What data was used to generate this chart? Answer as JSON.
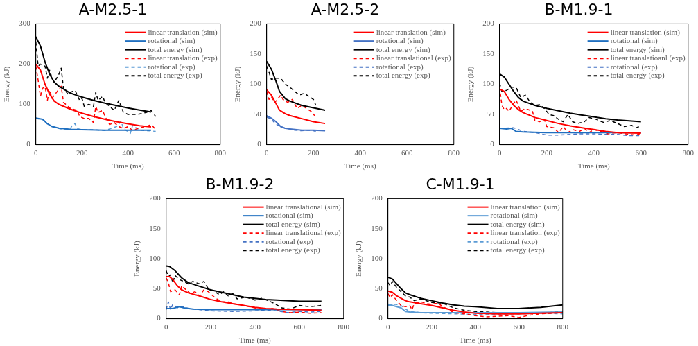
{
  "chart_data": [
    {
      "type": "line",
      "title": "A-M2.5-1",
      "xlabel": "Time (ms)",
      "ylabel": "Energy (kJ)",
      "xlim": [
        0,
        800
      ],
      "xticks": [
        0,
        200,
        400,
        600,
        800
      ],
      "ylim": [
        0,
        300
      ],
      "yticks": [
        0,
        100,
        200,
        300
      ],
      "grid": false,
      "legend": "top right",
      "marker": "none",
      "series": [
        {
          "name": "linear translation (sim)",
          "color": "#ff0000",
          "line_style": "solid",
          "x": [
            0,
            20,
            40,
            60,
            80,
            100,
            150,
            200,
            250,
            300,
            350,
            400,
            450,
            500
          ],
          "values": [
            200,
            185,
            150,
            125,
            108,
            100,
            88,
            78,
            70,
            63,
            57,
            52,
            47,
            44
          ]
        },
        {
          "name": "rotational (sim)",
          "color": "#1f6fc0",
          "line_style": "solid",
          "x": [
            0,
            30,
            50,
            70,
            100,
            150,
            200,
            300,
            400,
            500
          ],
          "values": [
            66,
            63,
            52,
            45,
            41,
            38,
            37,
            36,
            36,
            36
          ]
        },
        {
          "name": "total energy (sim)",
          "color": "#000000",
          "line_style": "solid",
          "x": [
            0,
            20,
            40,
            60,
            80,
            100,
            150,
            200,
            250,
            300,
            350,
            400,
            450,
            500
          ],
          "values": [
            268,
            245,
            205,
            175,
            155,
            145,
            128,
            118,
            110,
            103,
            97,
            91,
            86,
            81
          ]
        },
        {
          "name": "linear translation (exp)",
          "color": "#ff0000",
          "line_style": "dashed",
          "x": [
            0,
            10,
            20,
            30,
            40,
            50,
            60,
            70,
            90,
            110,
            120,
            150,
            180,
            190,
            210,
            230,
            250,
            260,
            270,
            290,
            300,
            320,
            340,
            360,
            380,
            400,
            420,
            450,
            480,
            500,
            520
          ],
          "values": [
            195,
            160,
            120,
            140,
            145,
            110,
            135,
            115,
            130,
            145,
            105,
            90,
            85,
            70,
            65,
            65,
            55,
            95,
            80,
            85,
            70,
            50,
            55,
            45,
            40,
            45,
            35,
            42,
            45,
            50,
            38
          ]
        },
        {
          "name": "rotational (exp)",
          "color": "#5b9bd5",
          "line_style": "dashed",
          "x": [
            0,
            30,
            60,
            100,
            120,
            150,
            160,
            170,
            180,
            200,
            250,
            300,
            350,
            370,
            380,
            410,
            420,
            450,
            500,
            520
          ],
          "values": [
            65,
            62,
            48,
            40,
            37,
            40,
            50,
            52,
            40,
            37,
            37,
            35,
            45,
            58,
            40,
            28,
            48,
            36,
            34,
            33
          ]
        },
        {
          "name": "total energy (exp)",
          "color": "#000000",
          "line_style": "dashed",
          "x": [
            0,
            10,
            20,
            40,
            50,
            60,
            70,
            80,
            100,
            110,
            120,
            140,
            150,
            170,
            190,
            200,
            210,
            230,
            250,
            260,
            270,
            290,
            300,
            320,
            340,
            360,
            380,
            400,
            440,
            480,
            500,
            520
          ],
          "values": [
            255,
            195,
            200,
            195,
            165,
            185,
            165,
            155,
            175,
            190,
            140,
            125,
            130,
            135,
            110,
            115,
            95,
            100,
            95,
            130,
            110,
            120,
            105,
            95,
            85,
            110,
            80,
            75,
            75,
            80,
            85,
            70
          ]
        }
      ]
    },
    {
      "type": "line",
      "title": "A-M2.5-2",
      "xlabel": "Time (ms)",
      "ylabel": "Energy (kJ)",
      "xlim": [
        0,
        800
      ],
      "xticks": [
        0,
        200,
        400,
        600,
        800
      ],
      "ylim": [
        0,
        200
      ],
      "yticks": [
        0,
        50,
        100,
        150,
        200
      ],
      "grid": false,
      "legend": "top right",
      "marker": "none",
      "series": [
        {
          "name": "linear translation (sim)",
          "color": "#ff0000",
          "line_style": "solid",
          "x": [
            0,
            20,
            40,
            55,
            80,
            100,
            150,
            200,
            250
          ],
          "values": [
            91,
            82,
            68,
            57,
            51,
            48,
            43,
            38,
            35
          ]
        },
        {
          "name": "rotational (sim)",
          "color": "#4472c4",
          "line_style": "solid",
          "x": [
            0,
            20,
            40,
            60,
            80,
            100,
            150,
            200,
            250
          ],
          "values": [
            48,
            44,
            38,
            30,
            27,
            26,
            24,
            24,
            23
          ]
        },
        {
          "name": "total energy (sim)",
          "color": "#000000",
          "line_style": "solid",
          "x": [
            0,
            20,
            40,
            55,
            80,
            100,
            150,
            200,
            250
          ],
          "values": [
            138,
            125,
            105,
            88,
            76,
            72,
            65,
            61,
            57
          ]
        },
        {
          "name": "linear translational (exp)",
          "color": "#ff0000",
          "line_style": "dashed",
          "x": [
            0,
            10,
            20,
            30,
            40,
            60,
            70,
            90,
            110,
            130,
            150,
            170,
            190,
            205
          ],
          "values": [
            88,
            75,
            80,
            70,
            72,
            82,
            75,
            70,
            75,
            60,
            65,
            60,
            55,
            48
          ]
        },
        {
          "name": "rotational (exp)",
          "color": "#4472c4",
          "line_style": "dashed",
          "x": [
            0,
            20,
            40,
            60,
            80,
            100,
            120,
            150,
            180,
            200,
            210
          ],
          "values": [
            46,
            42,
            34,
            30,
            27,
            26,
            24,
            23,
            24,
            23,
            22
          ]
        },
        {
          "name": "total energy (exp)",
          "color": "#000000",
          "line_style": "dashed",
          "x": [
            0,
            10,
            20,
            40,
            60,
            80,
            100,
            120,
            140,
            160,
            180,
            200,
            210
          ],
          "values": [
            130,
            120,
            108,
            110,
            110,
            100,
            95,
            88,
            82,
            85,
            80,
            75,
            65
          ]
        }
      ]
    },
    {
      "type": "line",
      "title": "B-M1.9-1",
      "xlabel": "Time (ms)",
      "ylabel": "Energy (kJ)",
      "xlim": [
        0,
        800
      ],
      "xticks": [
        0,
        200,
        400,
        600,
        800
      ],
      "ylim": [
        0,
        200
      ],
      "yticks": [
        0,
        50,
        100,
        150,
        200
      ],
      "grid": false,
      "legend": "top right",
      "marker": "none",
      "series": [
        {
          "name": "linear translation (sim)",
          "color": "#ff0000",
          "line_style": "solid",
          "x": [
            0,
            20,
            40,
            60,
            80,
            100,
            150,
            200,
            250,
            300,
            350,
            400,
            450,
            500,
            600
          ],
          "values": [
            92,
            88,
            75,
            65,
            58,
            53,
            45,
            40,
            35,
            31,
            28,
            25,
            22,
            20,
            19
          ]
        },
        {
          "name": "rotational (sim)",
          "color": "#1f6fc0",
          "line_style": "solid",
          "x": [
            0,
            30,
            50,
            70,
            100,
            200,
            300,
            400,
            500,
            600
          ],
          "values": [
            27,
            26,
            27,
            22,
            21,
            20,
            20,
            20,
            20,
            20
          ]
        },
        {
          "name": "total energy (sim)",
          "color": "#000000",
          "line_style": "solid",
          "x": [
            0,
            20,
            40,
            60,
            80,
            100,
            150,
            200,
            250,
            300,
            350,
            400,
            450,
            500,
            600
          ],
          "values": [
            117,
            112,
            100,
            88,
            78,
            72,
            65,
            60,
            56,
            52,
            49,
            46,
            43,
            41,
            38
          ]
        },
        {
          "name": "linear translatioanl (exp)",
          "color": "#ff0000",
          "line_style": "dashed",
          "x": [
            0,
            10,
            20,
            30,
            40,
            60,
            70,
            90,
            110,
            140,
            150,
            170,
            190,
            200,
            230,
            250,
            270,
            290,
            310,
            340,
            360,
            380,
            400,
            430,
            460,
            500,
            550,
            580,
            600
          ],
          "values": [
            95,
            65,
            58,
            60,
            55,
            68,
            74,
            55,
            60,
            55,
            40,
            38,
            42,
            30,
            28,
            20,
            30,
            20,
            25,
            22,
            27,
            20,
            25,
            22,
            18,
            20,
            17,
            16,
            19
          ]
        },
        {
          "name": "rotational (exp)",
          "color": "#4472c4",
          "line_style": "dashed",
          "x": [
            0,
            60,
            100,
            150,
            200,
            250,
            300,
            350,
            400,
            450,
            500,
            550,
            600
          ],
          "values": [
            27,
            28,
            22,
            20,
            16,
            16,
            17,
            18,
            18,
            17,
            17,
            15,
            15
          ]
        },
        {
          "name": "total energy (exp)",
          "color": "#000000",
          "line_style": "dashed",
          "x": [
            0,
            10,
            30,
            50,
            70,
            90,
            110,
            130,
            150,
            170,
            190,
            210,
            230,
            250,
            270,
            290,
            310,
            330,
            360,
            380,
            410,
            440,
            470,
            500,
            530,
            560,
            580,
            600
          ],
          "values": [
            102,
            88,
            90,
            95,
            95,
            78,
            82,
            70,
            65,
            66,
            60,
            50,
            48,
            42,
            38,
            50,
            38,
            35,
            38,
            45,
            42,
            37,
            40,
            35,
            30,
            32,
            28,
            31
          ]
        }
      ]
    },
    {
      "type": "line",
      "title": "B-M1.9-2",
      "xlabel": "Time (ms)",
      "ylabel": "Energy (kJ)",
      "xlim": [
        0,
        800
      ],
      "xticks": [
        0,
        200,
        400,
        600,
        800
      ],
      "ylim": [
        0,
        200
      ],
      "yticks": [
        0,
        50,
        100,
        150,
        200
      ],
      "grid": false,
      "legend": "top right",
      "marker": "none",
      "series": [
        {
          "name": "linear translational (sim)",
          "color": "#ff0000",
          "line_style": "solid",
          "x": [
            0,
            15,
            30,
            50,
            70,
            100,
            150,
            200,
            250,
            300,
            350,
            400,
            450,
            500,
            600,
            700
          ],
          "values": [
            70,
            70,
            65,
            55,
            48,
            43,
            38,
            32,
            28,
            25,
            22,
            19,
            17,
            16,
            15,
            14
          ]
        },
        {
          "name": "rotational (sim)",
          "color": "#1f6fc0",
          "line_style": "solid",
          "x": [
            0,
            30,
            60,
            80,
            120,
            200,
            300,
            400,
            500,
            600,
            700
          ],
          "values": [
            17,
            17,
            20,
            18,
            16,
            15,
            15,
            15,
            15,
            15,
            15
          ]
        },
        {
          "name": "total energy (sim)",
          "color": "#000000",
          "line_style": "solid",
          "x": [
            0,
            15,
            40,
            70,
            100,
            150,
            200,
            250,
            300,
            350,
            400,
            450,
            500,
            600,
            700
          ],
          "values": [
            88,
            87,
            80,
            68,
            60,
            54,
            48,
            44,
            40,
            36,
            34,
            32,
            31,
            29,
            29
          ]
        },
        {
          "name": "linear translational (exp)",
          "color": "#ff0000",
          "line_style": "dashed",
          "x": [
            0,
            10,
            20,
            40,
            60,
            70,
            90,
            110,
            130,
            150,
            170,
            190,
            220,
            250,
            280,
            300,
            350,
            400,
            440,
            480,
            520,
            560,
            600,
            650,
            700
          ],
          "values": [
            68,
            60,
            45,
            48,
            40,
            55,
            48,
            42,
            45,
            38,
            48,
            45,
            35,
            28,
            28,
            25,
            22,
            18,
            15,
            17,
            12,
            10,
            11,
            9,
            10
          ]
        },
        {
          "name": "rotational (exp)",
          "color": "#4472c4",
          "line_style": "dashed",
          "x": [
            0,
            10,
            20,
            30,
            50,
            80,
            100,
            150,
            200,
            300,
            400,
            450,
            500,
            550,
            600,
            650,
            700
          ],
          "values": [
            15,
            28,
            15,
            24,
            18,
            20,
            17,
            15,
            13,
            12,
            13,
            14,
            13,
            10,
            12,
            11,
            12
          ]
        },
        {
          "name": "total energy (exp)",
          "color": "#000000",
          "line_style": "dashed",
          "x": [
            0,
            10,
            20,
            30,
            40,
            60,
            80,
            100,
            120,
            150,
            170,
            190,
            220,
            240,
            260,
            280,
            300,
            320,
            360,
            400,
            430,
            460,
            490,
            520,
            560,
            600,
            650,
            700
          ],
          "values": [
            80,
            70,
            73,
            60,
            72,
            65,
            62,
            58,
            62,
            58,
            62,
            50,
            45,
            40,
            45,
            38,
            42,
            33,
            36,
            31,
            34,
            30,
            25,
            18,
            16,
            22,
            20,
            22
          ]
        }
      ]
    },
    {
      "type": "line",
      "title": "C-M1.9-1",
      "xlabel": "Time (ms)",
      "ylabel": "Energy (kJ)",
      "xlim": [
        0,
        800
      ],
      "xticks": [
        0,
        200,
        400,
        600,
        800
      ],
      "ylim": [
        0,
        200
      ],
      "yticks": [
        0,
        50,
        100,
        150,
        200
      ],
      "grid": false,
      "legend": "top right",
      "marker": "none",
      "series": [
        {
          "name": "linear translation (sim)",
          "color": "#ff0000",
          "line_style": "solid",
          "x": [
            0,
            20,
            40,
            60,
            80,
            100,
            150,
            200,
            250,
            300,
            350,
            400,
            500,
            600,
            700,
            800
          ],
          "values": [
            46,
            44,
            38,
            34,
            30,
            28,
            25,
            22,
            18,
            14,
            11,
            9,
            8,
            8,
            9,
            10
          ]
        },
        {
          "name": "rotational (sim)",
          "color": "#5b9bd5",
          "line_style": "solid",
          "x": [
            0,
            20,
            40,
            60,
            80,
            100,
            150,
            200,
            300,
            400,
            500,
            600,
            800
          ],
          "values": [
            24,
            22,
            20,
            18,
            12,
            11,
            10,
            10,
            10,
            10,
            10,
            10,
            11
          ]
        },
        {
          "name": "total energy (sim)",
          "color": "#000000",
          "line_style": "solid",
          "x": [
            0,
            20,
            40,
            60,
            80,
            100,
            150,
            200,
            250,
            300,
            350,
            400,
            500,
            600,
            700,
            800
          ],
          "values": [
            69,
            66,
            58,
            50,
            43,
            40,
            34,
            30,
            26,
            23,
            21,
            20,
            17,
            17,
            19,
            23
          ]
        },
        {
          "name": "linear translation (exp)",
          "color": "#ff0000",
          "line_style": "dashed",
          "x": [
            0,
            10,
            20,
            40,
            60,
            80,
            100,
            110,
            120,
            150,
            180,
            200,
            230,
            250,
            280,
            300,
            350,
            400,
            450,
            500,
            550,
            600,
            650,
            700,
            800
          ],
          "values": [
            42,
            35,
            40,
            30,
            22,
            20,
            22,
            15,
            25,
            28,
            25,
            24,
            26,
            20,
            15,
            10,
            8,
            5,
            3,
            4,
            5,
            2,
            6,
            8,
            10
          ]
        },
        {
          "name": "rotational (exp)",
          "color": "#5b9bd5",
          "line_style": "dashed",
          "x": [
            0,
            30,
            60,
            80,
            100,
            150,
            200,
            300,
            400,
            500,
            600,
            700,
            800
          ],
          "values": [
            22,
            24,
            22,
            16,
            12,
            10,
            9,
            8,
            7,
            7,
            8,
            9,
            8
          ]
        },
        {
          "name": "total energy (exp)",
          "color": "#000000",
          "line_style": "dashed",
          "x": [
            0,
            10,
            20,
            40,
            60,
            80,
            100,
            120,
            150,
            200,
            250,
            300,
            350,
            400,
            450,
            500,
            600,
            700,
            800
          ],
          "values": [
            60,
            55,
            62,
            52,
            45,
            38,
            36,
            30,
            33,
            27,
            26,
            18,
            14,
            12,
            11,
            10,
            9,
            9,
            12
          ]
        }
      ]
    }
  ]
}
